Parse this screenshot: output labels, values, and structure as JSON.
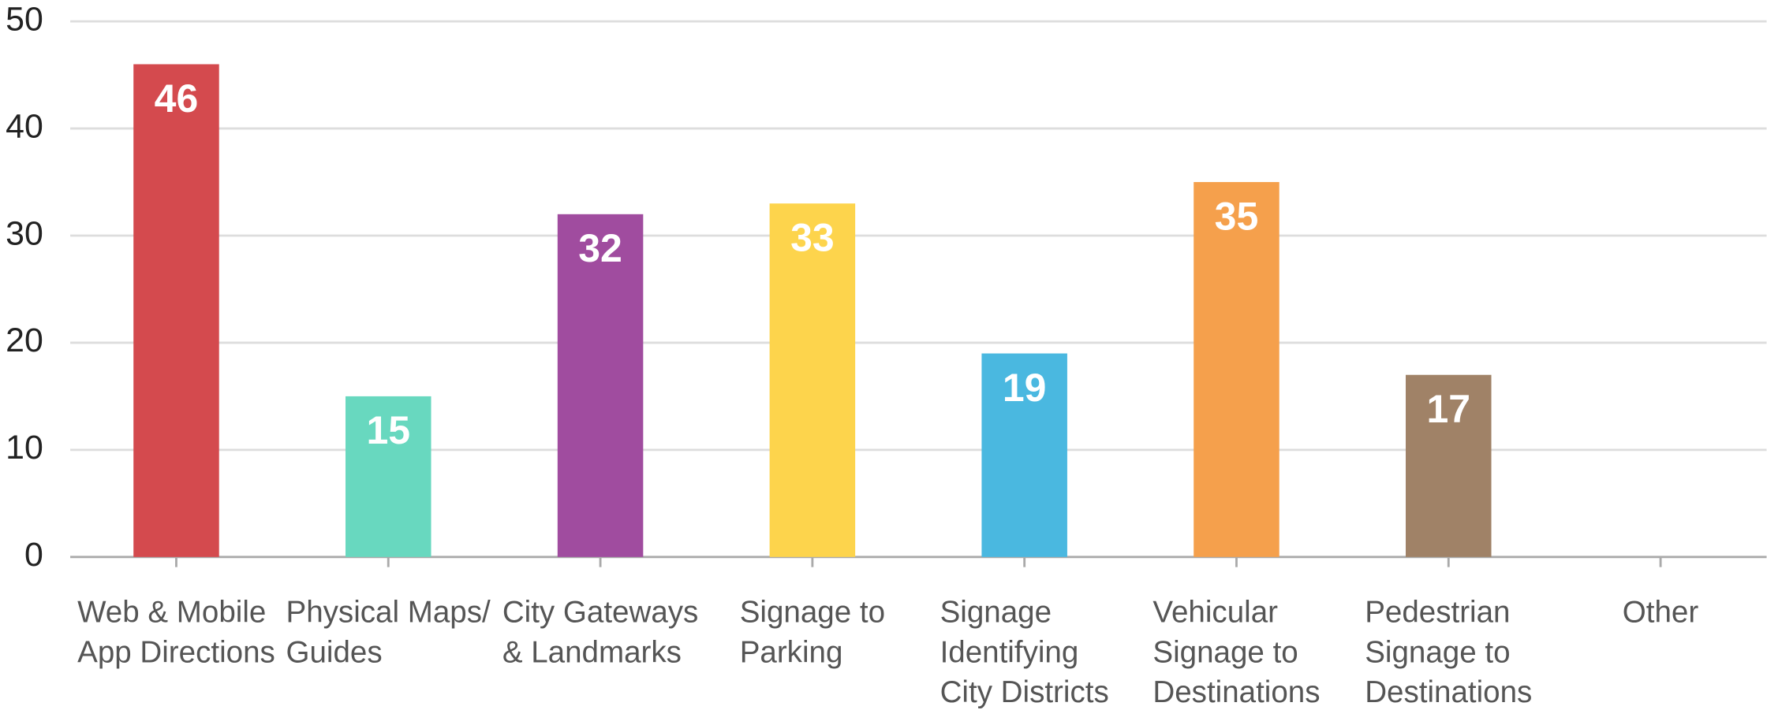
{
  "chart_data": {
    "type": "bar",
    "categories": [
      "Web & Mobile\nApp Directions",
      "Physical Maps/\nGuides",
      "City Gateways\n& Landmarks",
      "Signage to\nParking",
      "Signage\nIdentifying\nCity Districts",
      "Vehicular\nSignage to\nDestinations",
      "Pedestrian\nSignage to\nDestinations",
      "Other"
    ],
    "values": [
      46,
      15,
      32,
      33,
      19,
      35,
      17,
      0
    ],
    "colors": [
      "#d44a4e",
      "#68d8bf",
      "#a04c9f",
      "#fdd44c",
      "#4ab8e0",
      "#f5a04c",
      "#a08267",
      "#cccccc"
    ],
    "ylim": [
      0,
      50
    ],
    "yticks": [
      0,
      10,
      20,
      30,
      40,
      50
    ],
    "grid": true
  }
}
